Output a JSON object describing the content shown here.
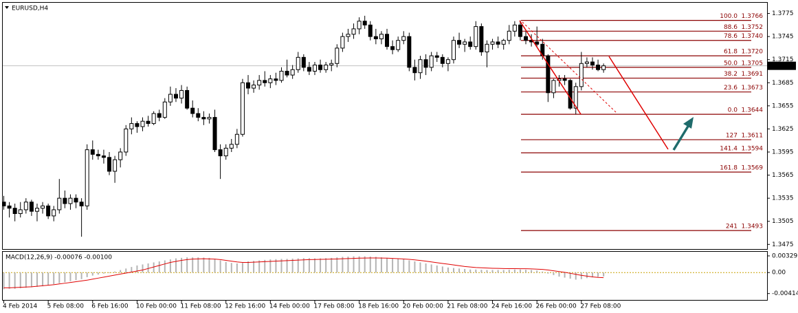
{
  "chart_data": [
    {
      "type": "candlestick",
      "title": "EURUSD,H4",
      "last_price": 1.3707,
      "ylim": [
        1.3469,
        1.3788
      ],
      "yticks": [
        1.3775,
        1.3745,
        1.3715,
        1.3685,
        1.3655,
        1.3625,
        1.3595,
        1.3565,
        1.3535,
        1.3505,
        1.3475
      ],
      "up_color": "#ffffff",
      "down_color": "#000000",
      "outline_color": "#000000",
      "categories": [
        "4 Feb 2014",
        null,
        null,
        null,
        null,
        null,
        null,
        null,
        "5 Feb 08:00",
        null,
        null,
        null,
        null,
        null,
        null,
        null,
        "6 Feb 16:00",
        null,
        null,
        null,
        null,
        null,
        null,
        null,
        "10 Feb 00:00",
        null,
        null,
        null,
        null,
        null,
        null,
        null,
        "11 Feb 08:00",
        null,
        null,
        null,
        null,
        null,
        null,
        null,
        "12 Feb 16:00",
        null,
        null,
        null,
        null,
        null,
        null,
        null,
        "14 Feb 00:00",
        null,
        null,
        null,
        null,
        null,
        null,
        null,
        "17 Feb 08:00",
        null,
        null,
        null,
        null,
        null,
        null,
        null,
        "18 Feb 16:00",
        null,
        null,
        null,
        null,
        null,
        null,
        null,
        "20 Feb 00:00",
        null,
        null,
        null,
        null,
        null,
        null,
        null,
        "21 Feb 08:00",
        null,
        null,
        null,
        null,
        null,
        null,
        null,
        "24 Feb 16:00",
        null,
        null,
        null,
        null,
        null,
        null,
        null,
        "26 Feb 00:00",
        null,
        null,
        null,
        null,
        null,
        null,
        null,
        "27 Feb 08:00",
        null,
        null,
        null,
        null
      ],
      "ohlc": [
        [
          1.353,
          1.3538,
          1.352,
          1.3525
        ],
        [
          1.3525,
          1.353,
          1.351,
          1.3522
        ],
        [
          1.3522,
          1.3528,
          1.3505,
          1.3515
        ],
        [
          1.3515,
          1.353,
          1.351,
          1.352
        ],
        [
          1.352,
          1.3535,
          1.3515,
          1.353
        ],
        [
          1.353,
          1.3533,
          1.3512,
          1.3518
        ],
        [
          1.3518,
          1.3528,
          1.3505,
          1.3522
        ],
        [
          1.3522,
          1.353,
          1.3515,
          1.3525
        ],
        [
          1.3525,
          1.3528,
          1.3508,
          1.3512
        ],
        [
          1.3512,
          1.3525,
          1.3505,
          1.352
        ],
        [
          1.352,
          1.356,
          1.3515,
          1.3535
        ],
        [
          1.3535,
          1.3545,
          1.3522,
          1.3528
        ],
        [
          1.3528,
          1.354,
          1.352,
          1.3535
        ],
        [
          1.3535,
          1.354,
          1.3522,
          1.353
        ],
        [
          1.353,
          1.3535,
          1.3485,
          1.3525
        ],
        [
          1.3525,
          1.3605,
          1.352,
          1.3598
        ],
        [
          1.3598,
          1.361,
          1.3585,
          1.3592
        ],
        [
          1.3592,
          1.3598,
          1.3585,
          1.359
        ],
        [
          1.359,
          1.3598,
          1.358,
          1.3588
        ],
        [
          1.3588,
          1.3595,
          1.3565,
          1.357
        ],
        [
          1.357,
          1.359,
          1.3555,
          1.3585
        ],
        [
          1.3585,
          1.36,
          1.3575,
          1.3595
        ],
        [
          1.3595,
          1.363,
          1.359,
          1.3625
        ],
        [
          1.3625,
          1.364,
          1.3618,
          1.3632
        ],
        [
          1.3632,
          1.3635,
          1.362,
          1.3628
        ],
        [
          1.3628,
          1.364,
          1.3622,
          1.3635
        ],
        [
          1.3635,
          1.3642,
          1.3628,
          1.3632
        ],
        [
          1.3632,
          1.3648,
          1.363,
          1.3645
        ],
        [
          1.3645,
          1.365,
          1.3635,
          1.364
        ],
        [
          1.364,
          1.3665,
          1.3638,
          1.366
        ],
        [
          1.366,
          1.368,
          1.3655,
          1.367
        ],
        [
          1.367,
          1.3678,
          1.366,
          1.3665
        ],
        [
          1.3665,
          1.3682,
          1.3658,
          1.3675
        ],
        [
          1.3675,
          1.368,
          1.365,
          1.3652
        ],
        [
          1.3652,
          1.3662,
          1.364,
          1.3645
        ],
        [
          1.3645,
          1.3652,
          1.3635,
          1.364
        ],
        [
          1.364,
          1.3648,
          1.363,
          1.3638
        ],
        [
          1.3638,
          1.3645,
          1.3632,
          1.364
        ],
        [
          1.364,
          1.365,
          1.3595,
          1.3598
        ],
        [
          1.3598,
          1.3605,
          1.356,
          1.359
        ],
        [
          1.359,
          1.3605,
          1.3585,
          1.36
        ],
        [
          1.36,
          1.3612,
          1.3595,
          1.3605
        ],
        [
          1.3605,
          1.3625,
          1.36,
          1.3618
        ],
        [
          1.3618,
          1.369,
          1.3615,
          1.3685
        ],
        [
          1.3685,
          1.3695,
          1.367,
          1.3678
        ],
        [
          1.3678,
          1.3688,
          1.3672,
          1.3682
        ],
        [
          1.3682,
          1.3695,
          1.3676,
          1.3688
        ],
        [
          1.3688,
          1.37,
          1.368,
          1.3685
        ],
        [
          1.3685,
          1.3695,
          1.3678,
          1.369
        ],
        [
          1.369,
          1.3698,
          1.3682,
          1.3688
        ],
        [
          1.3688,
          1.3705,
          1.3685,
          1.37
        ],
        [
          1.37,
          1.3715,
          1.3692,
          1.3695
        ],
        [
          1.3695,
          1.3708,
          1.369,
          1.3702
        ],
        [
          1.3702,
          1.3725,
          1.3698,
          1.3718
        ],
        [
          1.3718,
          1.3722,
          1.37,
          1.3705
        ],
        [
          1.3705,
          1.3712,
          1.3695,
          1.37
        ],
        [
          1.37,
          1.3712,
          1.3695,
          1.3708
        ],
        [
          1.3708,
          1.3715,
          1.3698,
          1.3702
        ],
        [
          1.3702,
          1.3712,
          1.3698,
          1.3708
        ],
        [
          1.3708,
          1.3715,
          1.37,
          1.371
        ],
        [
          1.371,
          1.3735,
          1.3705,
          1.373
        ],
        [
          1.373,
          1.375,
          1.3725,
          1.3745
        ],
        [
          1.3745,
          1.3755,
          1.3738,
          1.3748
        ],
        [
          1.3748,
          1.3762,
          1.3742,
          1.3755
        ],
        [
          1.3755,
          1.377,
          1.3748,
          1.3765
        ],
        [
          1.3765,
          1.3772,
          1.3755,
          1.376
        ],
        [
          1.376,
          1.3765,
          1.374,
          1.3745
        ],
        [
          1.3745,
          1.3755,
          1.3735,
          1.3742
        ],
        [
          1.3742,
          1.3752,
          1.3735,
          1.3748
        ],
        [
          1.3748,
          1.3755,
          1.3728,
          1.3732
        ],
        [
          1.3732,
          1.374,
          1.3722,
          1.3728
        ],
        [
          1.3728,
          1.3745,
          1.3725,
          1.374
        ],
        [
          1.374,
          1.3752,
          1.3735,
          1.3745
        ],
        [
          1.3745,
          1.375,
          1.37,
          1.3705
        ],
        [
          1.3705,
          1.3715,
          1.3688,
          1.3698
        ],
        [
          1.3698,
          1.372,
          1.369,
          1.3715
        ],
        [
          1.3715,
          1.3722,
          1.3695,
          1.3705
        ],
        [
          1.3705,
          1.3725,
          1.37,
          1.372
        ],
        [
          1.372,
          1.3725,
          1.3712,
          1.3718
        ],
        [
          1.3718,
          1.3722,
          1.3705,
          1.371
        ],
        [
          1.371,
          1.3718,
          1.37,
          1.3715
        ],
        [
          1.3715,
          1.3745,
          1.371,
          1.374
        ],
        [
          1.374,
          1.375,
          1.373,
          1.3735
        ],
        [
          1.3735,
          1.3742,
          1.3725,
          1.3738
        ],
        [
          1.3738,
          1.3745,
          1.3728,
          1.3732
        ],
        [
          1.3732,
          1.3765,
          1.3728,
          1.3758
        ],
        [
          1.3758,
          1.3762,
          1.372,
          1.3725
        ],
        [
          1.3725,
          1.374,
          1.3705,
          1.3735
        ],
        [
          1.3735,
          1.3742,
          1.3728,
          1.3738
        ],
        [
          1.3738,
          1.3745,
          1.373,
          1.3735
        ],
        [
          1.3735,
          1.3742,
          1.3728,
          1.374
        ],
        [
          1.374,
          1.376,
          1.3735,
          1.3752
        ],
        [
          1.3752,
          1.3765,
          1.3745,
          1.376
        ],
        [
          1.376,
          1.3766,
          1.374,
          1.3745
        ],
        [
          1.3745,
          1.3752,
          1.3735,
          1.374
        ],
        [
          1.374,
          1.3748,
          1.3732,
          1.3738
        ],
        [
          1.3738,
          1.3758,
          1.3732,
          1.3735
        ],
        [
          1.3735,
          1.3742,
          1.3715,
          1.372
        ],
        [
          1.372,
          1.3722,
          1.366,
          1.3672
        ],
        [
          1.3672,
          1.369,
          1.3665,
          1.3688
        ],
        [
          1.3688,
          1.3695,
          1.368,
          1.369
        ],
        [
          1.369,
          1.3695,
          1.3682,
          1.3688
        ],
        [
          1.3688,
          1.369,
          1.365,
          1.3652
        ],
        [
          1.3652,
          1.3685,
          1.3644,
          1.368
        ],
        [
          1.368,
          1.3725,
          1.3675,
          1.371
        ],
        [
          1.371,
          1.3718,
          1.3705,
          1.3712
        ],
        [
          1.3712,
          1.3718,
          1.3702,
          1.3708
        ],
        [
          1.3708,
          1.3715,
          1.37,
          1.3702
        ],
        [
          1.3702,
          1.371,
          1.3698,
          1.3707
        ]
      ],
      "fibonacci": {
        "color": "#8b0000",
        "levels": [
          {
            "level": "100.0",
            "price": 1.3766
          },
          {
            "level": "88.6",
            "price": 1.3752
          },
          {
            "level": "78.6",
            "price": {
              "value": 1.374,
              "label": "1.3740"
            }
          },
          {
            "level": "61.8",
            "price": {
              "value": 1.372,
              "label": "1.3720"
            }
          },
          {
            "level": "50.0",
            "price": 1.3705
          },
          {
            "level": "38.2",
            "price": 1.3691
          },
          {
            "level": "23.6",
            "price": 1.3673
          },
          {
            "level": "0.0",
            "price": 1.3644
          },
          {
            "level": "127",
            "price": 1.3611
          },
          {
            "level": "141.4",
            "price": 1.3594
          },
          {
            "level": "161.8",
            "price": 1.3569
          },
          {
            "level": "241",
            "price": 1.3493
          }
        ]
      }
    },
    {
      "type": "macd",
      "title": "MACD(12,26,9) -0.00076 -0.00100",
      "ylim": [
        -0.0054,
        0.0041
      ],
      "yticks": [
        0.00329,
        {
          "value": 0,
          "label": "0.00"
        },
        -0.00414
      ],
      "histogram": {
        "color": "#b4b4b4",
        "values": [
          -0.0033,
          -0.0032,
          -0.0032,
          -0.0031,
          -0.003,
          -0.0029,
          -0.0028,
          -0.0027,
          -0.0025,
          -0.0023,
          -0.0021,
          -0.0019,
          -0.0017,
          -0.0015,
          -0.0013,
          -0.0009,
          -0.0006,
          -0.0004,
          -0.0002,
          -0.0001,
          0.0002,
          0.0005,
          0.0008,
          0.0011,
          0.0014,
          0.0016,
          0.0018,
          0.002,
          0.0022,
          0.0024,
          0.0026,
          0.0028,
          0.0029,
          0.003,
          0.003,
          0.003,
          0.00295,
          0.0029,
          0.0027,
          0.0024,
          0.0021,
          0.0019,
          0.0018,
          0.0019,
          0.0022,
          0.0023,
          0.0024,
          0.0025,
          0.0026,
          0.00265,
          0.0027,
          0.0027,
          0.00275,
          0.0028,
          0.00285,
          0.00285,
          0.0028,
          0.0028,
          0.00285,
          0.0029,
          0.003,
          0.0031,
          0.00315,
          0.0032,
          0.0032,
          0.0032,
          0.00315,
          0.0031,
          0.003,
          0.0029,
          0.0028,
          0.0027,
          0.0026,
          0.0024,
          0.0022,
          0.002,
          0.0018,
          0.0016,
          0.0014,
          0.0012,
          0.001,
          0.0009,
          0.0008,
          0.0007,
          0.0006,
          0.0006,
          0.00055,
          0.0005,
          0.0005,
          0.0005,
          0.0005,
          0.00055,
          0.0006,
          0.0006,
          0.00055,
          0.0005,
          0.0004,
          0.0002,
          -0.0002,
          -0.0005,
          -0.0008,
          -0.001,
          -0.0012,
          -0.0014,
          -0.0013,
          -0.0011,
          -0.00095,
          -0.00085,
          -0.00076
        ]
      },
      "signal": {
        "color": "#e00000",
        "values": [
          -0.003,
          -0.003,
          -0.00295,
          -0.0029,
          -0.00285,
          -0.0028,
          -0.0027,
          -0.0026,
          -0.0025,
          -0.0024,
          -0.00225,
          -0.0021,
          -0.00195,
          -0.0018,
          -0.00165,
          -0.0015,
          -0.0013,
          -0.0011,
          -0.0009,
          -0.0007,
          -0.0005,
          -0.0003,
          -0.0001,
          0.0001,
          0.0003,
          0.0005,
          0.0008,
          0.0011,
          0.0014,
          0.0017,
          0.002,
          0.0022,
          0.0024,
          0.00255,
          0.00265,
          0.0027,
          0.00272,
          0.0027,
          0.00265,
          0.00255,
          0.0024,
          0.00225,
          0.0021,
          0.002,
          0.002,
          0.00205,
          0.0021,
          0.00215,
          0.0022,
          0.00225,
          0.0023,
          0.00235,
          0.0024,
          0.00245,
          0.0025,
          0.00255,
          0.00258,
          0.0026,
          0.00262,
          0.00265,
          0.00268,
          0.00272,
          0.00276,
          0.0028,
          0.00284,
          0.00286,
          0.00288,
          0.00288,
          0.00286,
          0.00284,
          0.0028,
          0.00275,
          0.00268,
          0.0026,
          0.0025,
          0.00238,
          0.00225,
          0.0021,
          0.00195,
          0.0018,
          0.00165,
          0.0015,
          0.00135,
          0.0012,
          0.0011,
          0.001,
          0.00095,
          0.0009,
          0.00085,
          0.00082,
          0.0008,
          0.00078,
          0.00077,
          0.00076,
          0.00075,
          0.00072,
          0.00068,
          0.00062,
          0.0005,
          0.00035,
          0.0002,
          5e-05,
          -0.00015,
          -0.00035,
          -0.00055,
          -0.0007,
          -0.00085,
          -0.00095,
          -0.001
        ]
      }
    }
  ]
}
